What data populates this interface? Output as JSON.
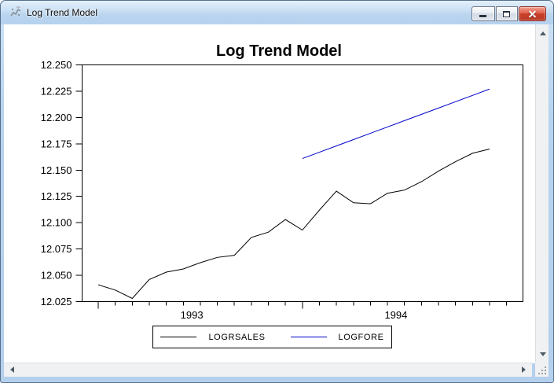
{
  "window": {
    "title": "Log Trend Model",
    "controls": {
      "minimize_label": "minimize",
      "maximize_label": "restore",
      "close_label": "close"
    }
  },
  "colors": {
    "titlebar_blue": "#b7d3ee",
    "close_button_red": "#c8402b",
    "series_black": "#000000",
    "series_blue": "#0000cc",
    "scrollbar_track": "#f0f1f2"
  },
  "chart_data": {
    "type": "line",
    "title": "Log Trend Model",
    "xlabel": "",
    "ylabel": "",
    "ylim": [
      12.025,
      12.25
    ],
    "ytick_step": 0.025,
    "ytick_labels": [
      "12.025",
      "12.050",
      "12.075",
      "12.100",
      "12.125",
      "12.150",
      "12.175",
      "12.200",
      "12.225",
      "12.250"
    ],
    "x_year_labels": [
      "1993",
      "1994"
    ],
    "x_axis_note": "monthly minor ticks, major ticks at January 1993 and January 1994",
    "grid": false,
    "legend_position": "bottom-center",
    "series": [
      {
        "name": "LOGRSALES",
        "color": "#000000",
        "start": "1993M01",
        "start_month_index": 0,
        "values": [
          12.041,
          12.036,
          12.028,
          12.046,
          12.053,
          12.056,
          12.062,
          12.067,
          12.069,
          12.086,
          12.091,
          12.103,
          12.093,
          12.112,
          12.13,
          12.119,
          12.118,
          12.128,
          12.131,
          12.139,
          12.149,
          12.158,
          12.166,
          12.17
        ]
      },
      {
        "name": "LOGFORE",
        "color": "#0000cc",
        "start": "1994M01",
        "start_month_index": 12,
        "values": [
          12.161,
          12.167,
          12.173,
          12.179,
          12.185,
          12.191,
          12.197,
          12.203,
          12.209,
          12.215,
          12.221,
          12.227
        ]
      }
    ]
  }
}
